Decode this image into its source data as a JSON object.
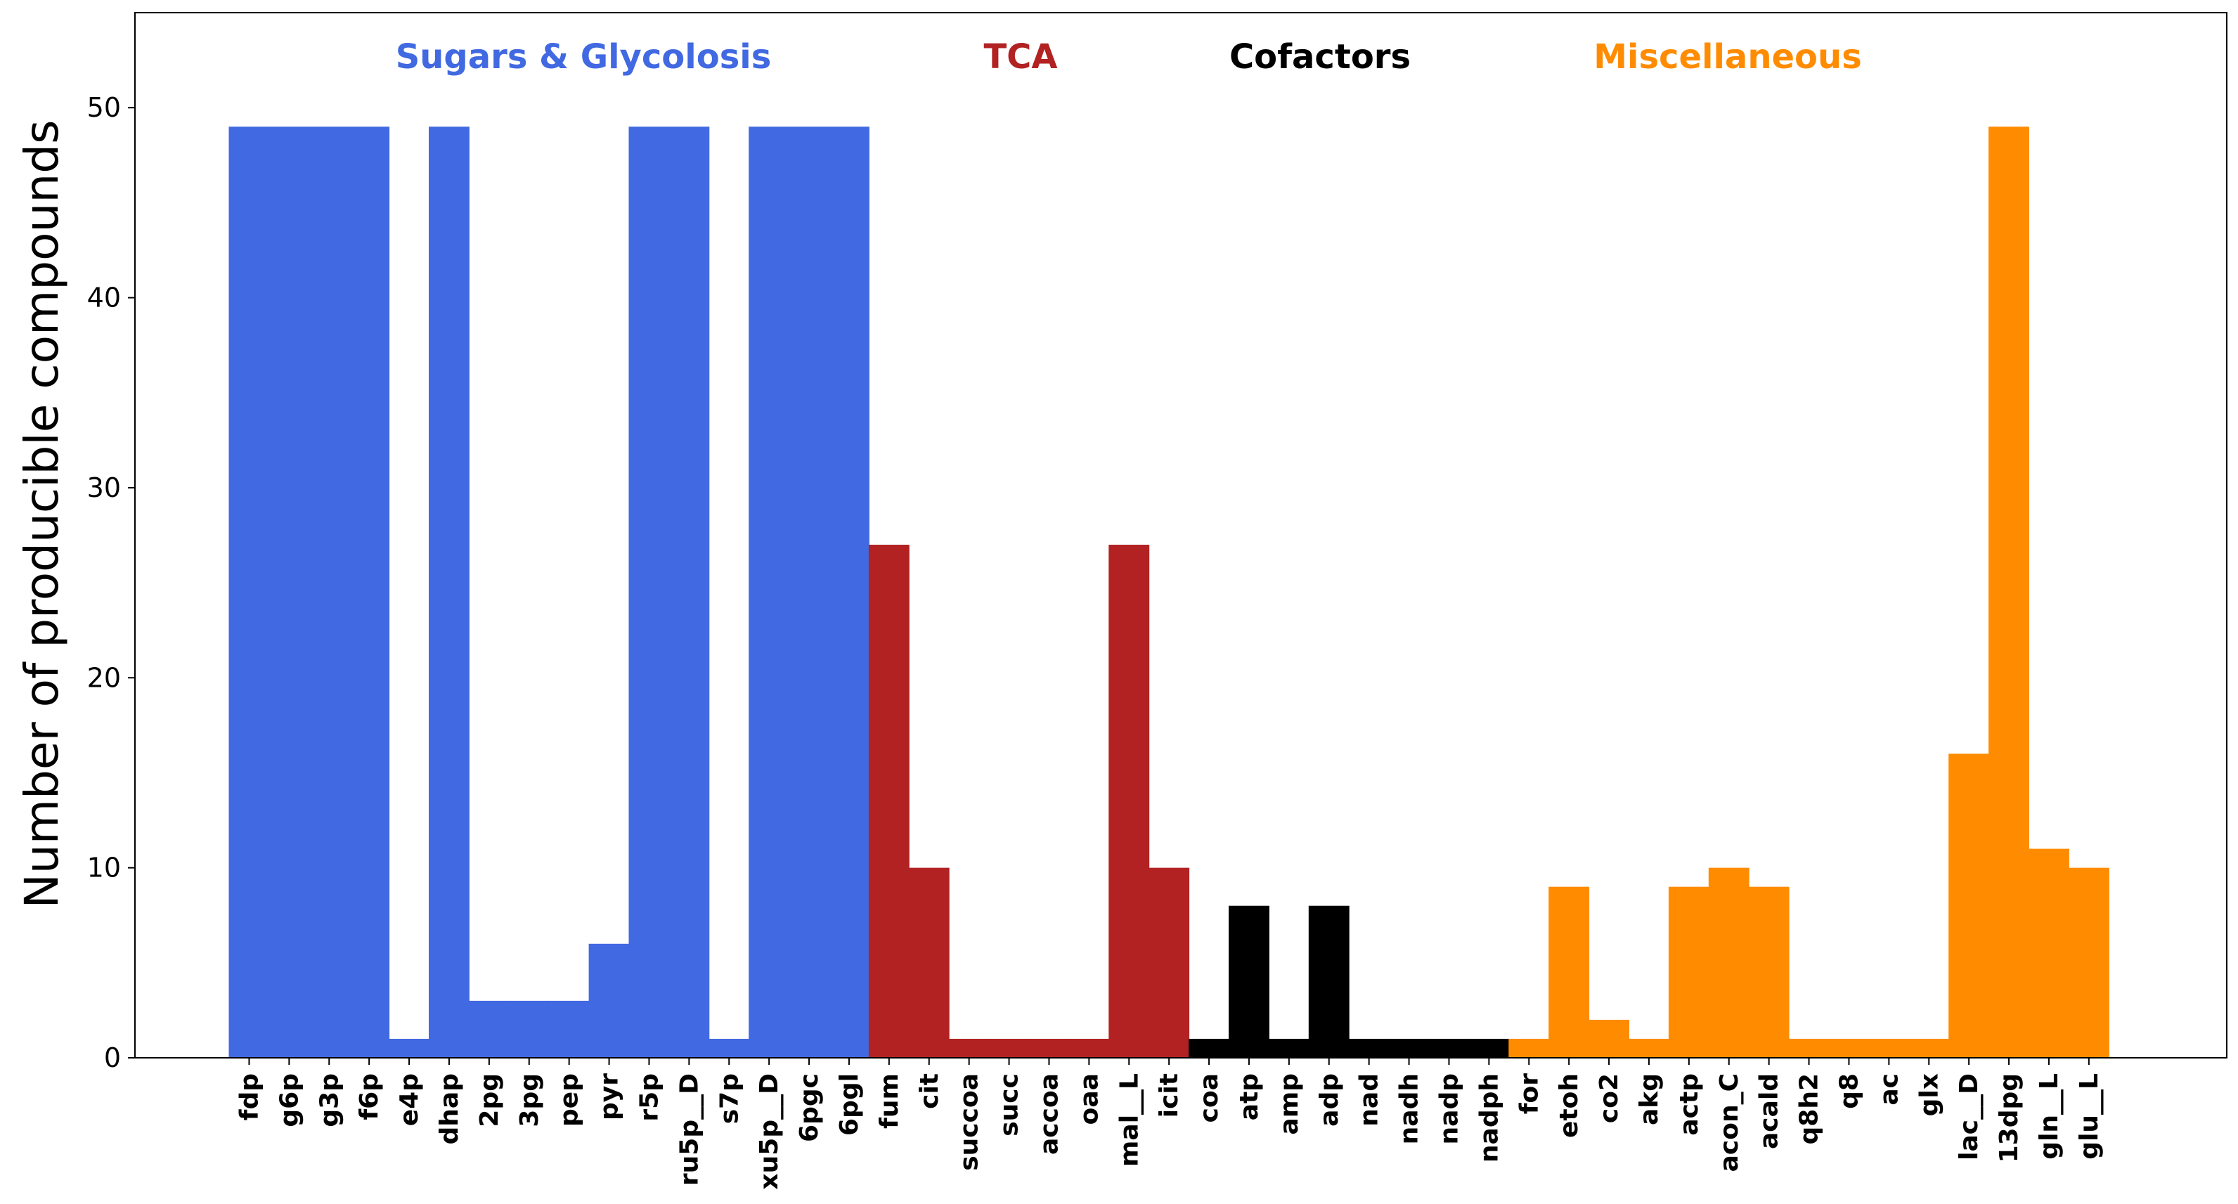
{
  "colors": {
    "sugars": "#4169E1",
    "tca": "#B22222",
    "cofactors": "#000000",
    "misc": "#FF8C00"
  },
  "chart_data": {
    "type": "bar",
    "title": "",
    "xlabel": "",
    "ylabel": "Number of producible compounds",
    "ylim": [
      0,
      55
    ],
    "yticks": [
      0,
      10,
      20,
      30,
      40,
      50
    ],
    "grid": false,
    "groups": [
      {
        "label": "Sugars & Glycolosis",
        "color": "#4169E1"
      },
      {
        "label": "TCA",
        "color": "#B22222"
      },
      {
        "label": "Cofactors",
        "color": "#000000"
      },
      {
        "label": "Miscellaneous",
        "color": "#FF8C00"
      }
    ],
    "categories": [
      "fdp",
      "g6p",
      "g3p",
      "f6p",
      "e4p",
      "dhap",
      "2pg",
      "3pg",
      "pep",
      "pyr",
      "r5p",
      "ru5p__D",
      "s7p",
      "xu5p__D",
      "6pgc",
      "6pgl",
      "fum",
      "cit",
      "succoa",
      "succ",
      "accoa",
      "oaa",
      "mal__L",
      "icit",
      "coa",
      "atp",
      "amp",
      "adp",
      "nad",
      "nadh",
      "nadp",
      "nadph",
      "for",
      "etoh",
      "co2",
      "akg",
      "actp",
      "acon_C",
      "acald",
      "q8h2",
      "q8",
      "ac",
      "glx",
      "lac__D",
      "13dpg",
      "gln__L",
      "glu__L"
    ],
    "category_group": [
      0,
      0,
      0,
      0,
      0,
      0,
      0,
      0,
      0,
      0,
      0,
      0,
      0,
      0,
      0,
      0,
      1,
      1,
      1,
      1,
      1,
      1,
      1,
      1,
      2,
      2,
      2,
      2,
      2,
      2,
      2,
      2,
      3,
      3,
      3,
      3,
      3,
      3,
      3,
      3,
      3,
      3,
      3,
      3,
      3,
      3,
      3
    ],
    "values": [
      49,
      49,
      49,
      49,
      1,
      49,
      3,
      3,
      3,
      6,
      49,
      49,
      1,
      49,
      49,
      49,
      27,
      10,
      1,
      1,
      1,
      1,
      27,
      10,
      1,
      8,
      1,
      8,
      1,
      1,
      1,
      1,
      1,
      9,
      2,
      1,
      9,
      10,
      9,
      1,
      1,
      1,
      1,
      16,
      49,
      11,
      10
    ]
  }
}
